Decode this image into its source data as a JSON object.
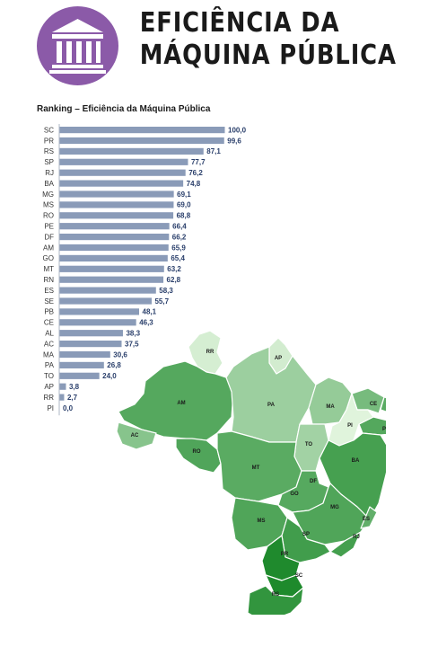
{
  "header": {
    "title_line1": "EFICIÊNCIA DA",
    "title_line2": "MÁQUINA PÚBLICA",
    "icon": "government-building-icon",
    "badge_color": "#8b5aa8"
  },
  "chart_data": {
    "type": "bar",
    "orientation": "horizontal",
    "title": "Ranking – Eficiência da Máquina Pública",
    "bar_color": "#8a9bb8",
    "xlim": [
      0,
      100
    ],
    "categories": [
      "SC",
      "PR",
      "RS",
      "SP",
      "RJ",
      "BA",
      "MG",
      "MS",
      "RO",
      "PE",
      "DF",
      "AM",
      "GO",
      "MT",
      "RN",
      "ES",
      "SE",
      "PB",
      "CE",
      "AL",
      "AC",
      "MA",
      "PA",
      "TO",
      "AP",
      "RR",
      "PI"
    ],
    "values": [
      100.0,
      99.6,
      87.1,
      77.7,
      76.2,
      74.8,
      69.1,
      69.0,
      68.8,
      66.4,
      66.2,
      65.9,
      65.4,
      63.2,
      62.8,
      58.3,
      55.7,
      48.1,
      46.3,
      38.3,
      37.5,
      30.6,
      26.8,
      24.0,
      3.8,
      2.7,
      0.0
    ],
    "value_labels": [
      "100,0",
      "99,6",
      "87,1",
      "77,7",
      "76,2",
      "74,8",
      "69,1",
      "69,0",
      "68,8",
      "66,4",
      "66,2",
      "65,9",
      "65,4",
      "63,2",
      "62,8",
      "58,3",
      "55,7",
      "48,1",
      "46,3",
      "38,3",
      "37,5",
      "30,6",
      "26,8",
      "24,0",
      "3,8",
      "2,7",
      "0,0"
    ]
  },
  "map": {
    "color_scale": {
      "low": "#e0f4dc",
      "high": "#1e8a2c"
    },
    "states": [
      {
        "code": "RR"
      },
      {
        "code": "AP"
      },
      {
        "code": "AM"
      },
      {
        "code": "PA"
      },
      {
        "code": "MA"
      },
      {
        "code": "CE"
      },
      {
        "code": "RN"
      },
      {
        "code": "PB"
      },
      {
        "code": "PE"
      },
      {
        "code": "AL"
      },
      {
        "code": "SE"
      },
      {
        "code": "PI"
      },
      {
        "code": "AC"
      },
      {
        "code": "RO"
      },
      {
        "code": "TO"
      },
      {
        "code": "BA"
      },
      {
        "code": "MT"
      },
      {
        "code": "DF"
      },
      {
        "code": "GO"
      },
      {
        "code": "MG"
      },
      {
        "code": "ES"
      },
      {
        "code": "MS"
      },
      {
        "code": "SP"
      },
      {
        "code": "RJ"
      },
      {
        "code": "PR"
      },
      {
        "code": "SC"
      },
      {
        "code": "RS"
      }
    ]
  }
}
